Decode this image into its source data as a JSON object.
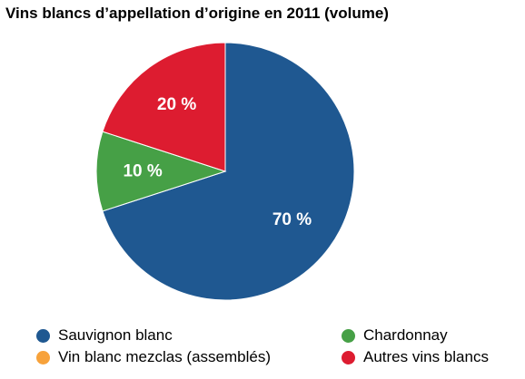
{
  "chart_data": {
    "type": "pie",
    "title": "Vins blancs d’appellation d’origine en 2011 (volume)",
    "unit": "%",
    "slices": [
      {
        "name": "Sauvignon blanc",
        "value": 70,
        "label": "70 %",
        "color": "#1f5891"
      },
      {
        "name": "Vin blanc mezclas (assemblés)",
        "value": 0,
        "label": "",
        "color": "#f7a23b"
      },
      {
        "name": "Chardonnay",
        "value": 10,
        "label": "10 %",
        "color": "#46a046"
      },
      {
        "name": "Autres vins blancs",
        "value": 20,
        "label": "20 %",
        "color": "#dd1c30"
      }
    ],
    "start_direction": "top",
    "direction": "clockwise",
    "legend": {
      "placement": "bottom",
      "items": [
        {
          "name": "Sauvignon blanc",
          "color": "#1f5891"
        },
        {
          "name": "Vin blanc mezclas (assemblés)",
          "color": "#f7a23b"
        },
        {
          "name": "Chardonnay",
          "color": "#46a046"
        },
        {
          "name": "Autres vins blancs",
          "color": "#dd1c30"
        }
      ]
    }
  }
}
